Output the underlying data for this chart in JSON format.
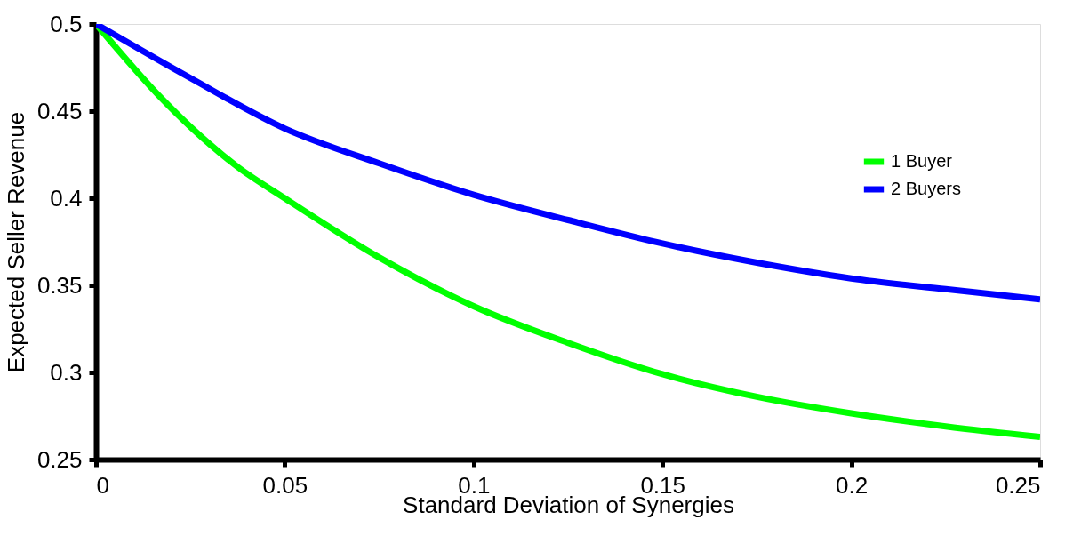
{
  "chart_data": {
    "type": "line",
    "xlabel": "Standard Deviation of Synergies",
    "ylabel": "Expected Seller Revenue",
    "series": [
      {
        "name": "1 Buyer",
        "color": "#00ff00",
        "x": [
          0,
          0.0175,
          0.025,
          0.0375,
          0.05,
          0.075,
          0.1,
          0.125,
          0.15,
          0.175,
          0.2,
          0.225,
          0.25
        ],
        "values": [
          0.5,
          0.457,
          0.441,
          0.418,
          0.4,
          0.366,
          0.338,
          0.317,
          0.299,
          0.286,
          0.2765,
          0.269,
          0.263
        ]
      },
      {
        "name": "2 Buyers",
        "color": "#0000ff",
        "x": [
          0,
          0.025,
          0.05,
          0.075,
          0.1,
          0.125,
          0.15,
          0.175,
          0.2,
          0.225,
          0.25
        ],
        "values": [
          0.5,
          0.469,
          0.44,
          0.42,
          0.402,
          0.3875,
          0.374,
          0.363,
          0.354,
          0.3478,
          0.342
        ]
      }
    ],
    "xlim": [
      0,
      0.25
    ],
    "xticks": [
      0,
      0.05,
      0.1,
      0.15,
      0.2,
      0.25
    ],
    "ylim": [
      0.25,
      0.5
    ],
    "yticks": [
      0.25,
      0.3,
      0.35,
      0.4,
      0.45,
      0.5
    ],
    "grid": false,
    "legend": "top right",
    "line_style": "solid",
    "marker": "none"
  }
}
